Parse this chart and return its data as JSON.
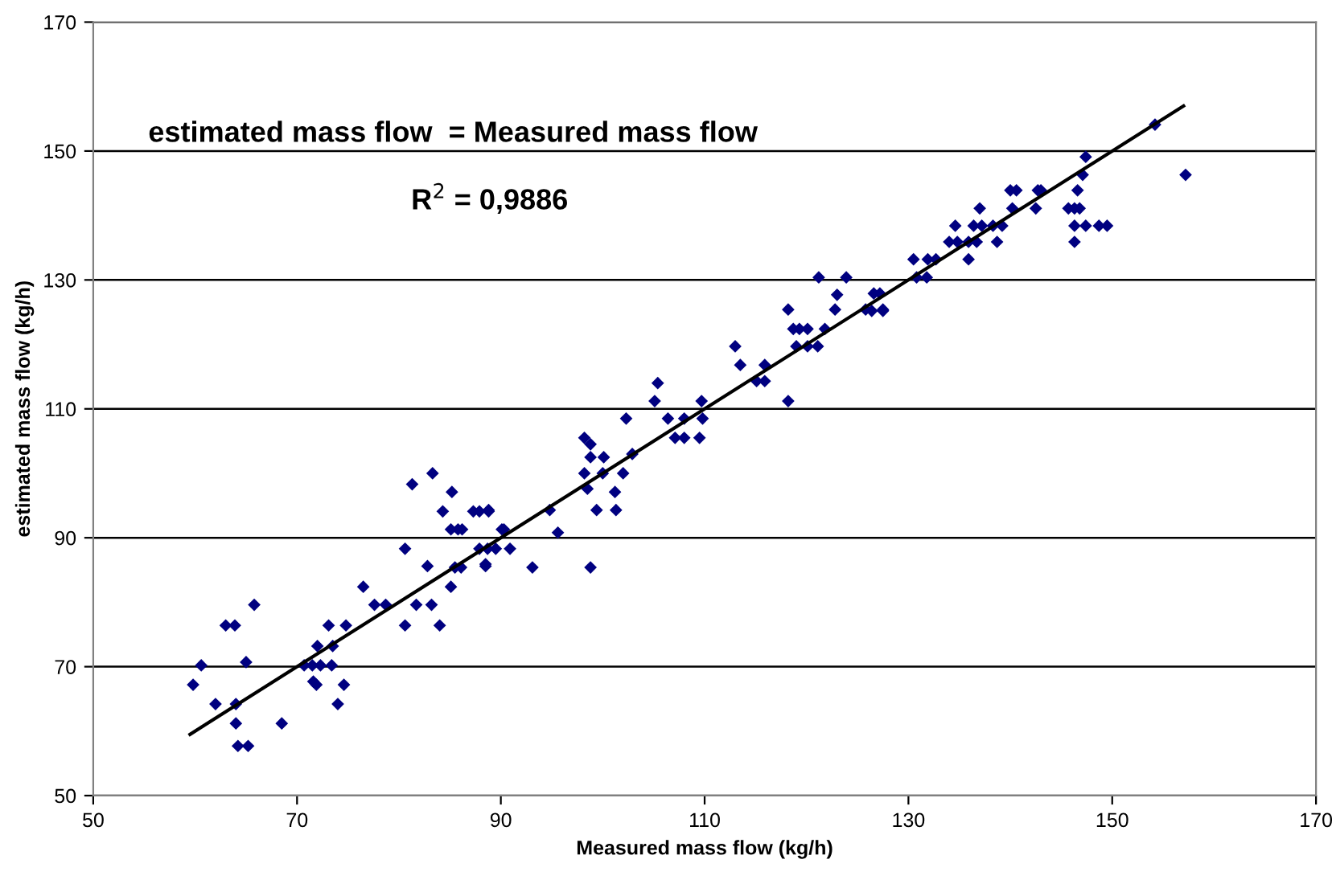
{
  "chart_data": {
    "type": "scatter",
    "xlabel": "Measured mass flow (kg/h)",
    "ylabel": "estimated mass flow (kg/h)",
    "annotations": [
      "estimated mass flow  = Measured mass flow",
      "R$^{2}$ = 0,9886"
    ],
    "xlim": [
      50,
      170
    ],
    "ylim": [
      50,
      170
    ],
    "xticks": [
      50,
      70,
      90,
      110,
      130,
      150,
      170
    ],
    "yticks": [
      50,
      70,
      90,
      110,
      130,
      150,
      170
    ],
    "grid": "y",
    "marker": "diamond",
    "series": [
      {
        "color": "#000080",
        "x": [
          59.8,
          60.6,
          62.0,
          63.0,
          63.9,
          65.8,
          64.0,
          64.0,
          64.2,
          65.2,
          65.0,
          68.5,
          71.6,
          71.9,
          70.7,
          71.5,
          72.3,
          73.4,
          72.0,
          73.5,
          73.1,
          74.8,
          74.0,
          74.6,
          76.5,
          77.6,
          78.7,
          80.6,
          81.3,
          80.6,
          81.7,
          82.8,
          83.3,
          83.2,
          84.0,
          84.3,
          85.1,
          85.8,
          86.2,
          85.2,
          85.1,
          85.5,
          86.1,
          87.3,
          87.9,
          88.8,
          88.5,
          87.9,
          89.5,
          90.1,
          88.8,
          90.3,
          88.7,
          90.9,
          88.5,
          93.1,
          94.8,
          95.6,
          98.8,
          98.2,
          98.8,
          98.8,
          100.1,
          98.2,
          100.0,
          102.0,
          98.5,
          101.2,
          99.4,
          101.3,
          102.9,
          102.3,
          105.1,
          105.4,
          106.4,
          108.0,
          109.8,
          107.1,
          108.0,
          109.5,
          109.7,
          113.0,
          113.5,
          115.1,
          115.9,
          115.9,
          118.2,
          118.2,
          118.7,
          119.3,
          120.1,
          119.0,
          120.1,
          121.1,
          121.2,
          123.9,
          123.0,
          122.8,
          121.8,
          125.8,
          127.2,
          127.5,
          126.6,
          126.4,
          127.5,
          130.5,
          131.9,
          132.7,
          130.8,
          131.8,
          134.0,
          134.8,
          134.6,
          135.9,
          135.9,
          136.7,
          136.4,
          137.2,
          137.0,
          138.7,
          138.3,
          139.2,
          140.0,
          140.6,
          140.2,
          142.7,
          143.0,
          142.5,
          145.7,
          146.3,
          146.8,
          146.6,
          147.1,
          147.4,
          146.3,
          147.4,
          148.7,
          149.5,
          146.3,
          154.2,
          157.2
        ],
        "values": [
          67.2,
          70.2,
          64.2,
          76.4,
          76.4,
          79.6,
          64.2,
          61.2,
          57.7,
          57.7,
          70.7,
          61.2,
          67.7,
          67.2,
          70.2,
          70.2,
          70.2,
          70.2,
          73.2,
          73.2,
          76.4,
          76.4,
          64.2,
          67.2,
          82.4,
          79.6,
          79.6,
          88.3,
          98.3,
          76.4,
          79.6,
          85.6,
          100.0,
          79.6,
          76.4,
          94.1,
          91.3,
          91.3,
          91.3,
          97.1,
          82.4,
          85.4,
          85.4,
          94.1,
          94.1,
          94.1,
          85.6,
          88.3,
          88.3,
          91.3,
          94.3,
          91.3,
          88.3,
          88.3,
          85.9,
          85.4,
          94.3,
          90.8,
          85.4,
          105.5,
          104.5,
          102.5,
          102.5,
          100.0,
          100.0,
          100.0,
          97.6,
          97.1,
          94.3,
          94.3,
          103.0,
          108.5,
          111.2,
          114.0,
          108.5,
          108.5,
          108.5,
          105.5,
          105.5,
          105.5,
          111.2,
          119.7,
          116.8,
          114.3,
          114.3,
          116.8,
          111.2,
          125.4,
          122.4,
          122.4,
          122.4,
          119.7,
          119.7,
          119.7,
          130.4,
          130.4,
          127.7,
          125.4,
          122.4,
          125.4,
          127.9,
          125.4,
          127.9,
          125.2,
          125.2,
          133.2,
          133.2,
          133.2,
          130.4,
          130.4,
          135.9,
          135.9,
          138.4,
          133.2,
          135.9,
          135.9,
          138.4,
          138.4,
          141.1,
          135.9,
          138.4,
          138.4,
          143.9,
          143.9,
          141.1,
          143.9,
          143.9,
          141.1,
          141.1,
          141.1,
          141.1,
          143.9,
          146.3,
          149.1,
          138.4,
          138.4,
          138.4,
          138.4,
          135.9,
          154.1,
          146.3
        ]
      },
      {
        "type": "line",
        "color": "#000000",
        "x": [
          59.5,
          157
        ],
        "values": [
          59.5,
          157
        ],
        "marker": "none"
      }
    ]
  }
}
